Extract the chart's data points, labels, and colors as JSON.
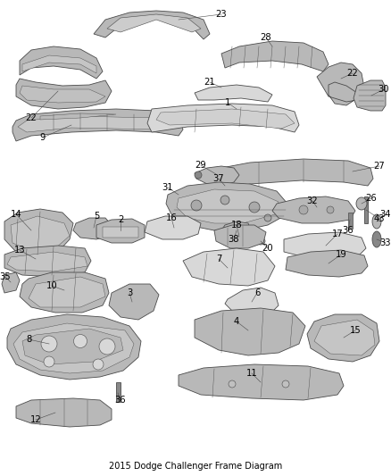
{
  "title": "2015 Dodge Challenger Frame Diagram",
  "bg_color": "#ffffff",
  "ec": "#4a4a4a",
  "fc_light": "#d8d8d8",
  "fc_mid": "#b8b8b8",
  "fc_dark": "#888888",
  "lw": 0.6,
  "fig_width": 4.38,
  "fig_height": 5.33,
  "dpi": 100
}
